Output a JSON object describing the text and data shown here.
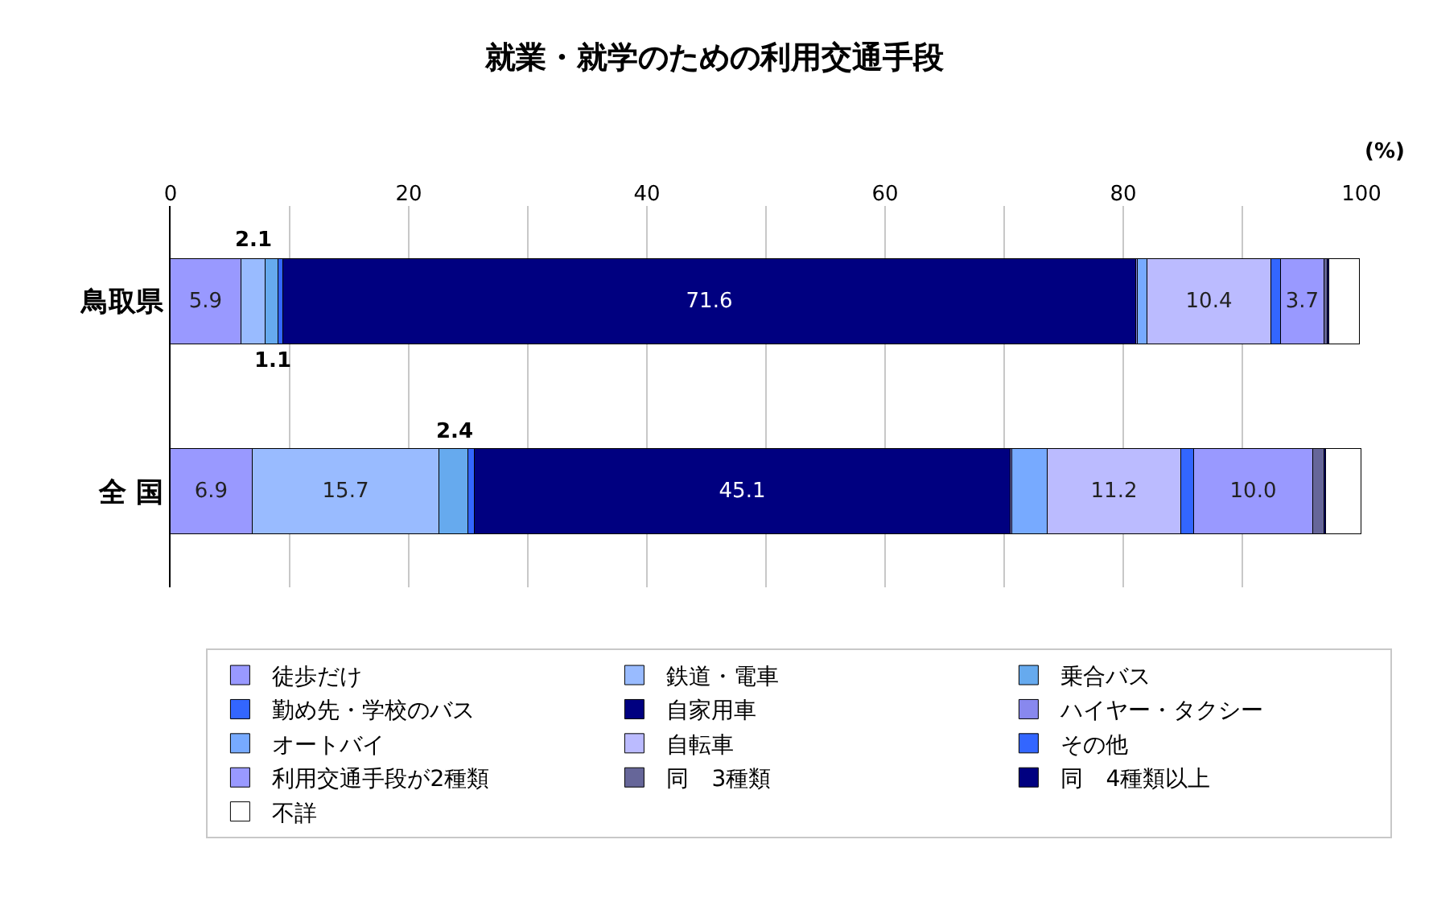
{
  "chart_data": {
    "type": "bar",
    "orientation": "horizontal",
    "stacked": true,
    "title": "就業・就学のための利用交通手段",
    "xlabel": "(%)",
    "categories": [
      "鳥取県",
      "全 国"
    ],
    "xlim": [
      0,
      100
    ],
    "xticks": [
      0,
      {
        "value": 10,
        "label": null
      },
      20,
      {
        "value": 30,
        "label": null
      },
      40,
      {
        "value": 50,
        "label": null
      },
      60,
      {
        "value": 70,
        "label": null
      },
      80,
      {
        "value": 90,
        "label": null
      },
      100
    ],
    "grid": "x",
    "legend": "bottom",
    "series": [
      {
        "name": "徒歩だけ",
        "color": "#9999ff",
        "values": [
          5.9,
          6.9
        ],
        "value_labels": [
          "5.9",
          "6.9"
        ]
      },
      {
        "name": "鉄道・電車",
        "color": "#99bbff",
        "values": [
          2.1,
          15.7
        ],
        "value_labels": [
          "2.1",
          "15.7"
        ]
      },
      {
        "name": "乗合バス",
        "color": "#66aaee",
        "values": [
          1.1,
          2.4
        ],
        "value_labels": [
          "1.1",
          "2.4"
        ]
      },
      {
        "name": "勤め先・学校のバス",
        "color": "#3366ff",
        "values": [
          0.4,
          0.5
        ],
        "value_labels": [
          null,
          null
        ]
      },
      {
        "name": "自家用車",
        "color": "#000080",
        "values": [
          71.6,
          45.1
        ],
        "value_labels": [
          "71.6",
          "45.1"
        ]
      },
      {
        "name": "ハイヤー・タクシー",
        "color": "#8888ee",
        "values": [
          0.1,
          0.1
        ],
        "value_labels": [
          null,
          null
        ]
      },
      {
        "name": "オートバイ",
        "color": "#77aaff",
        "values": [
          0.8,
          3.0
        ],
        "value_labels": [
          null,
          null
        ]
      },
      {
        "name": "自転車",
        "color": "#bbbbff",
        "values": [
          10.4,
          11.2
        ],
        "value_labels": [
          "10.4",
          "11.2"
        ]
      },
      {
        "name": "その他",
        "color": "#3366ff",
        "values": [
          0.8,
          1.1
        ],
        "value_labels": [
          null,
          null
        ]
      },
      {
        "name": "利用交通手段が2種類",
        "color": "#9999ff",
        "values": [
          3.7,
          10.0
        ],
        "value_labels": [
          "3.7",
          "10.0"
        ]
      },
      {
        "name": "同　3種類",
        "color": "#666699",
        "values": [
          0.3,
          0.9
        ],
        "value_labels": [
          null,
          null
        ]
      },
      {
        "name": "同　4種類以上",
        "color": "#000080",
        "values": [
          0.1,
          0.1
        ],
        "value_labels": [
          null,
          null
        ]
      },
      {
        "name": "不詳",
        "color": "#ffffff",
        "values": [
          2.6,
          3.0
        ],
        "value_labels": [
          null,
          null
        ]
      }
    ]
  }
}
